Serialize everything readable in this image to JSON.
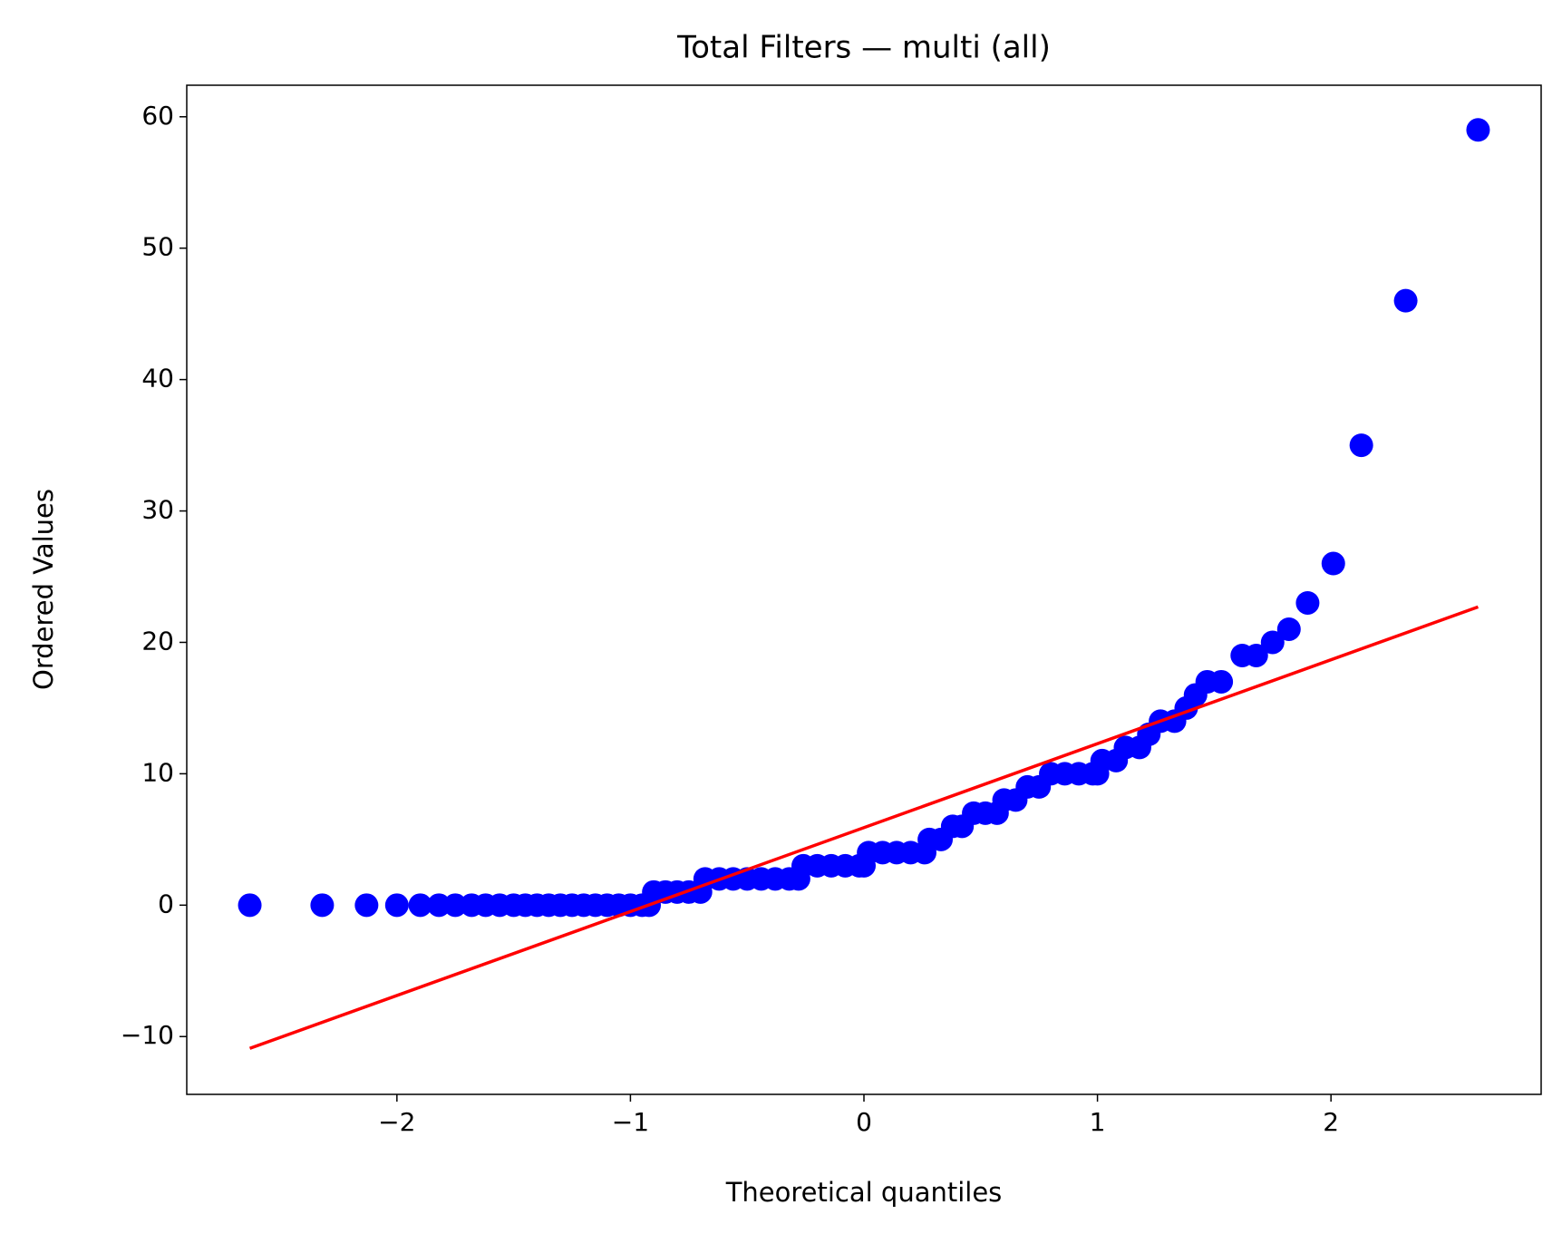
{
  "chart_data": {
    "type": "scatter",
    "title": "Total Filters — multi (all)",
    "xlabel": "Theoretical quantiles",
    "ylabel": "Ordered Values",
    "xlim": [
      -2.9,
      2.9
    ],
    "ylim": [
      -14.4,
      62.4
    ],
    "xticks": [
      {
        "value": -2,
        "label": "−2"
      },
      {
        "value": -1,
        "label": "−1"
      },
      0,
      1,
      2
    ],
    "yticks": [
      {
        "value": -10,
        "label": "−10"
      },
      0,
      10,
      20,
      30,
      40,
      50,
      60
    ],
    "series": [
      {
        "type": "scatter",
        "color": "#0000ff",
        "x": [
          -2.63,
          -2.32,
          -2.13,
          -2.0,
          -1.9,
          -1.82,
          -1.75,
          -1.68,
          -1.62,
          -1.56,
          -1.5,
          -1.45,
          -1.4,
          -1.35,
          -1.3,
          -1.25,
          -1.2,
          -1.15,
          -1.1,
          -1.05,
          -1.0,
          -0.95,
          -0.92,
          -0.9,
          -0.85,
          -0.8,
          -0.75,
          -0.7,
          -0.68,
          -0.62,
          -0.56,
          -0.5,
          -0.44,
          -0.38,
          -0.32,
          -0.28,
          -0.26,
          -0.2,
          -0.14,
          -0.08,
          -0.02,
          0.0,
          0.02,
          0.08,
          0.14,
          0.2,
          0.26,
          0.28,
          0.33,
          0.38,
          0.42,
          0.47,
          0.52,
          0.57,
          0.6,
          0.65,
          0.7,
          0.75,
          0.8,
          0.86,
          0.92,
          0.98,
          1.0,
          1.02,
          1.08,
          1.12,
          1.18,
          1.22,
          1.27,
          1.33,
          1.38,
          1.42,
          1.47,
          1.53,
          1.62,
          1.68,
          1.75,
          1.82,
          1.9,
          2.01,
          2.13,
          2.32,
          2.63
        ],
        "values": [
          0,
          0,
          0,
          0,
          0,
          0,
          0,
          0,
          0,
          0,
          0,
          0,
          0,
          0,
          0,
          0,
          0,
          0,
          0,
          0,
          0,
          0,
          0,
          1,
          1,
          1,
          1,
          1,
          2,
          2,
          2,
          2,
          2,
          2,
          2,
          2,
          3,
          3,
          3,
          3,
          3,
          3,
          4,
          4,
          4,
          4,
          4,
          5,
          5,
          6,
          6,
          7,
          7,
          7,
          8,
          8,
          9,
          9,
          10,
          10,
          10,
          10,
          10,
          11,
          11,
          12,
          12,
          13,
          14,
          14,
          15,
          16,
          17,
          17,
          19,
          19,
          20,
          21,
          23,
          26,
          35,
          46,
          59
        ]
      },
      {
        "type": "line",
        "color": "#ff0000",
        "x": [
          -2.63,
          2.63
        ],
        "values": [
          -10.9,
          22.7
        ]
      }
    ]
  }
}
